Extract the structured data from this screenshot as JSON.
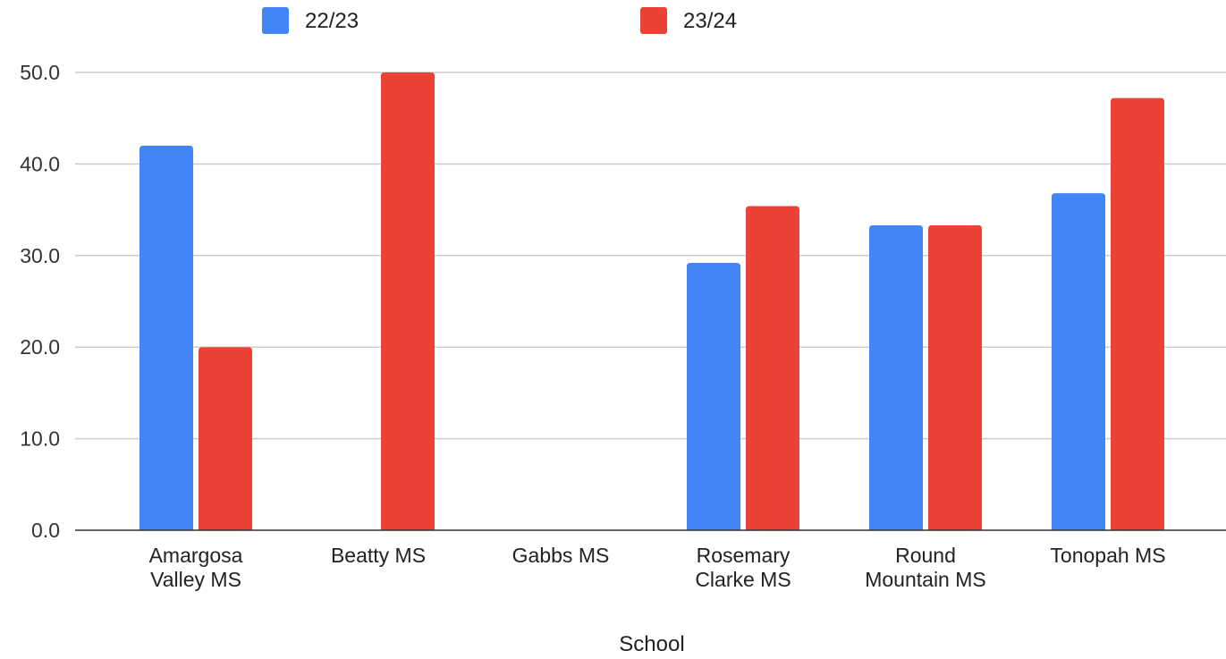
{
  "chart_data": {
    "type": "bar",
    "categories": [
      [
        "Amargosa",
        "Valley MS"
      ],
      [
        "Beatty MS"
      ],
      [
        "Gabbs MS"
      ],
      [
        "Rosemary",
        "Clarke MS"
      ],
      [
        "Round",
        "Mountain MS"
      ],
      [
        "Tonopah MS"
      ]
    ],
    "series": [
      {
        "name": "22/23",
        "color": "#4285f4",
        "values": [
          42.0,
          null,
          null,
          29.2,
          33.3,
          36.8
        ]
      },
      {
        "name": "23/24",
        "color": "#ea4335",
        "values": [
          20.0,
          50.0,
          null,
          35.4,
          33.3,
          47.2
        ]
      }
    ],
    "xlabel": "School",
    "ylabel": "",
    "ylim": [
      0,
      50
    ],
    "yticks": [
      0,
      10,
      20,
      30,
      40,
      50
    ],
    "ytick_labels": [
      "0.0",
      "10.0",
      "20.0",
      "30.0",
      "40.0",
      "50.0"
    ],
    "grid": true,
    "legend_position": "top"
  }
}
